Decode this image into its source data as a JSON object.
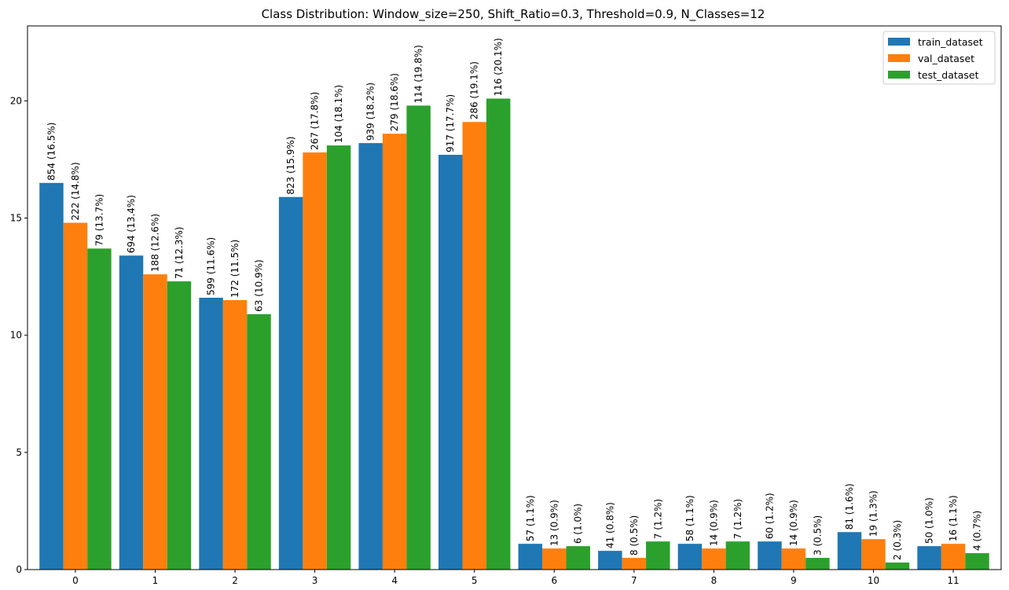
{
  "chart_data": {
    "type": "bar",
    "title": "Class Distribution: Window_size=250, Shift_Ratio=0.3, Threshold=0.9, N_Classes=12",
    "xlabel": "",
    "ylabel": "",
    "categories": [
      "0",
      "1",
      "2",
      "3",
      "4",
      "5",
      "6",
      "7",
      "8",
      "9",
      "10",
      "11"
    ],
    "yticks": [
      0,
      5,
      10,
      15,
      20
    ],
    "ylim": [
      0,
      23.2
    ],
    "grid": false,
    "legend_position": "top-right",
    "series": [
      {
        "name": "train_dataset",
        "color": "#1f77b4",
        "values": [
          16.5,
          13.4,
          11.6,
          15.9,
          18.2,
          17.7,
          1.1,
          0.8,
          1.1,
          1.2,
          1.6,
          1.0
        ],
        "labels": [
          "854 (16.5%)",
          "694 (13.4%)",
          "599 (11.6%)",
          "823 (15.9%)",
          "939 (18.2%)",
          "917 (17.7%)",
          "57 (1.1%)",
          "41 (0.8%)",
          "58 (1.1%)",
          "60 (1.2%)",
          "81 (1.6%)",
          "50 (1.0%)"
        ]
      },
      {
        "name": "val_dataset",
        "color": "#ff7f0e",
        "values": [
          14.8,
          12.6,
          11.5,
          17.8,
          18.6,
          19.1,
          0.9,
          0.5,
          0.9,
          0.9,
          1.3,
          1.1
        ],
        "labels": [
          "222 (14.8%)",
          "188 (12.6%)",
          "172 (11.5%)",
          "267 (17.8%)",
          "279 (18.6%)",
          "286 (19.1%)",
          "13 (0.9%)",
          "8 (0.5%)",
          "14 (0.9%)",
          "14 (0.9%)",
          "19 (1.3%)",
          "16 (1.1%)"
        ]
      },
      {
        "name": "test_dataset",
        "color": "#2ca02c",
        "values": [
          13.7,
          12.3,
          10.9,
          18.1,
          19.8,
          20.1,
          1.0,
          1.2,
          1.2,
          0.5,
          0.3,
          0.7
        ],
        "labels": [
          "79 (13.7%)",
          "71 (12.3%)",
          "63 (10.9%)",
          "104 (18.1%)",
          "114 (19.8%)",
          "116 (20.1%)",
          "6 (1.0%)",
          "7 (1.2%)",
          "7 (1.2%)",
          "3 (0.5%)",
          "2 (0.3%)",
          "4 (0.7%)"
        ]
      }
    ]
  }
}
